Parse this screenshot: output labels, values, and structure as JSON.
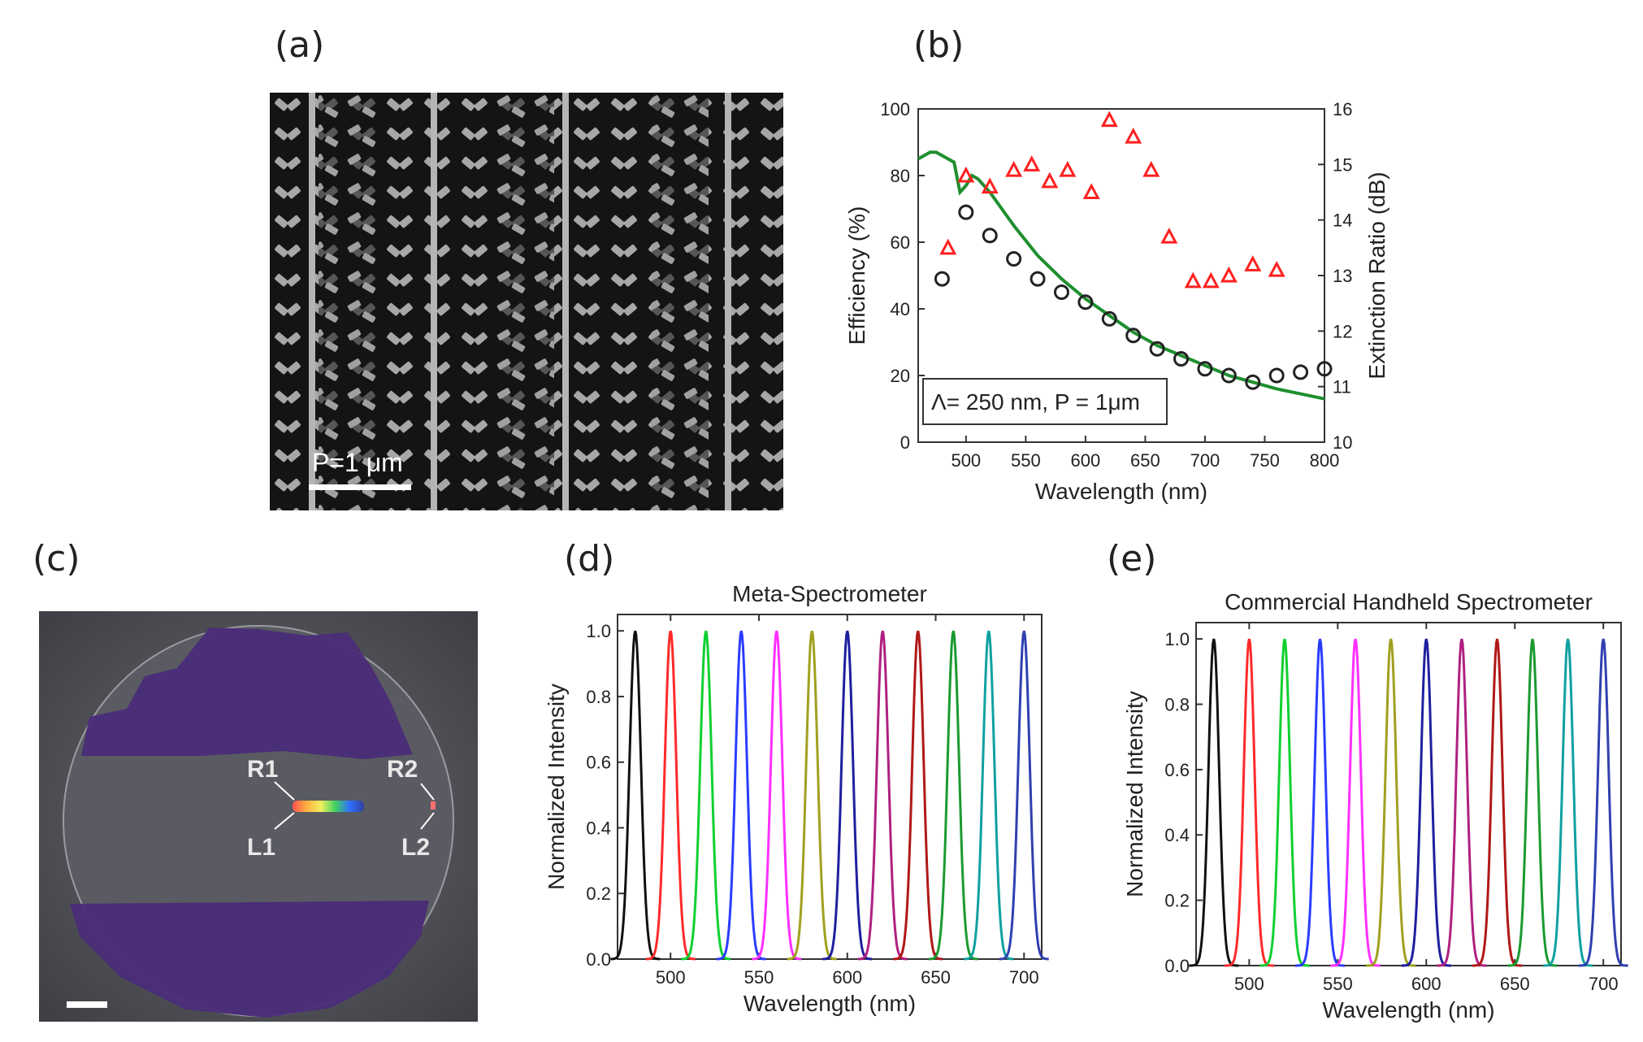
{
  "panel_labels": {
    "a": "(a)",
    "b": "(b)",
    "c": "(c)",
    "d": "(d)",
    "e": "(e)"
  },
  "sem": {
    "scale_label": "P=1 μm"
  },
  "wafer": {
    "labels": {
      "R1": "R1",
      "R2": "R2",
      "L1": "L1",
      "L2": "L2"
    }
  },
  "chart_data": [
    {
      "type": "scatter",
      "panel": "b",
      "xlabel": "Wavelength (nm)",
      "ylabel": "Efficiency (%)",
      "y2label": "Extinction Ratio (dB)",
      "xlim": [
        460,
        800
      ],
      "ylim": [
        0,
        100
      ],
      "y2lim": [
        10,
        16
      ],
      "xticks": [
        500,
        550,
        600,
        650,
        700,
        750,
        800
      ],
      "yticks": [
        0,
        20,
        40,
        60,
        80,
        100
      ],
      "y2ticks": [
        10,
        11,
        12,
        13,
        14,
        15,
        16
      ],
      "annotation_text": "Λ= 250 nm, P = 1μm",
      "colors": {
        "efficiency_points": "#222222",
        "extinction_points": "#ff2020",
        "efficiency_curve": "#1f8f2f"
      },
      "efficiency_points": {
        "x": [
          480,
          500,
          520,
          540,
          560,
          580,
          600,
          620,
          640,
          660,
          680,
          700,
          720,
          740,
          760,
          780,
          800
        ],
        "y": [
          49,
          69,
          62,
          55,
          49,
          45,
          42,
          37,
          32,
          28,
          25,
          22,
          20,
          18,
          20,
          21,
          22
        ]
      },
      "extinction_points": {
        "x": [
          485,
          500,
          520,
          540,
          555,
          570,
          585,
          605,
          620,
          640,
          655,
          670,
          690,
          705,
          720,
          740,
          760
        ],
        "y": [
          13.5,
          14.8,
          14.6,
          14.9,
          15.0,
          14.7,
          14.9,
          14.5,
          15.8,
          15.5,
          14.9,
          13.7,
          12.9,
          12.9,
          13.0,
          13.2,
          13.1
        ]
      },
      "efficiency_curve": {
        "x": [
          460,
          470,
          475,
          480,
          490,
          495,
          500,
          505,
          510,
          520,
          530,
          540,
          560,
          580,
          600,
          620,
          640,
          660,
          680,
          700,
          720,
          740,
          760,
          780,
          800
        ],
        "y": [
          85,
          87,
          87,
          86,
          84,
          75,
          77,
          80,
          79,
          75,
          70,
          65,
          56,
          49,
          43,
          38,
          33,
          29,
          26,
          23,
          20,
          18,
          16,
          14.5,
          13
        ]
      }
    },
    {
      "type": "line",
      "panel": "d",
      "title": "Meta-Spectrometer",
      "xlabel": "Wavelength (nm)",
      "ylabel": "Normalized Intensity",
      "xlim": [
        470,
        710
      ],
      "ylim": [
        0,
        1.05
      ],
      "xticks": [
        500,
        550,
        600,
        650,
        700
      ],
      "yticks": [
        0.0,
        0.2,
        0.4,
        0.6,
        0.8,
        1.0
      ],
      "peak_width_nm": 3.2,
      "series": [
        {
          "center": 480,
          "color": "#111111"
        },
        {
          "center": 500,
          "color": "#ff2a2a"
        },
        {
          "center": 520,
          "color": "#10d030"
        },
        {
          "center": 540,
          "color": "#2a3cff"
        },
        {
          "center": 560,
          "color": "#ff30ff"
        },
        {
          "center": 580,
          "color": "#a0a020"
        },
        {
          "center": 600,
          "color": "#1f1fa0"
        },
        {
          "center": 620,
          "color": "#b02080"
        },
        {
          "center": 640,
          "color": "#b01818"
        },
        {
          "center": 660,
          "color": "#1a9a30"
        },
        {
          "center": 680,
          "color": "#10a0a0"
        },
        {
          "center": 700,
          "color": "#3040b0"
        }
      ]
    },
    {
      "type": "line",
      "panel": "e",
      "title": "Commercial Handheld Spectrometer",
      "xlabel": "Wavelength (nm)",
      "ylabel": "Normalized Intensity",
      "xlim": [
        470,
        710
      ],
      "ylim": [
        0,
        1.05
      ],
      "xticks": [
        500,
        550,
        600,
        650,
        700
      ],
      "yticks": [
        0.0,
        0.2,
        0.4,
        0.6,
        0.8,
        1.0
      ],
      "peak_width_nm": 3.0,
      "series": [
        {
          "center": 480,
          "color": "#111111"
        },
        {
          "center": 500,
          "color": "#ff2a2a"
        },
        {
          "center": 520,
          "color": "#10d030"
        },
        {
          "center": 540,
          "color": "#2a3cff"
        },
        {
          "center": 560,
          "color": "#ff30ff"
        },
        {
          "center": 580,
          "color": "#a0a020"
        },
        {
          "center": 600,
          "color": "#1f1fa0"
        },
        {
          "center": 620,
          "color": "#b02080"
        },
        {
          "center": 640,
          "color": "#b01818"
        },
        {
          "center": 660,
          "color": "#1a9a30"
        },
        {
          "center": 680,
          "color": "#10a0a0"
        },
        {
          "center": 700,
          "color": "#3040b0"
        }
      ]
    }
  ]
}
